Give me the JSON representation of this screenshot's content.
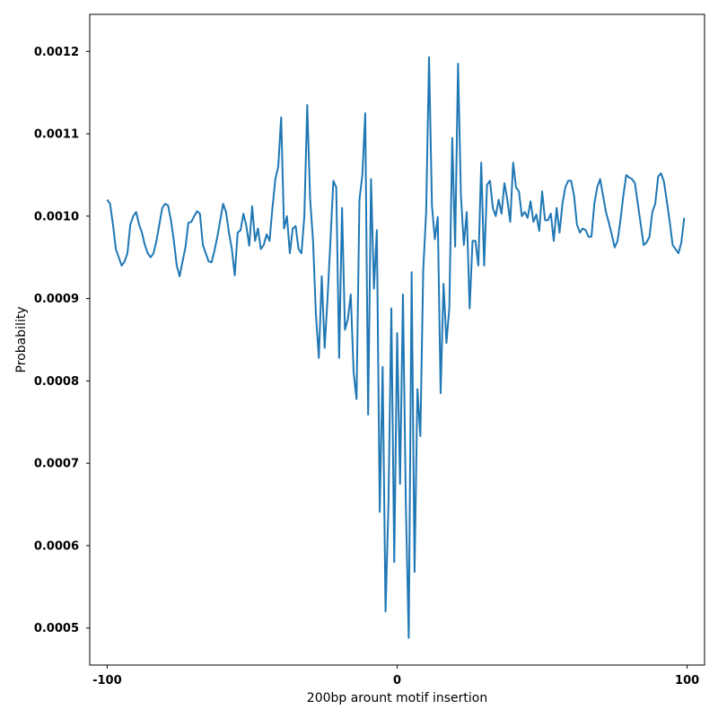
{
  "chart_data": {
    "type": "line",
    "title": "",
    "xlabel": "200bp arount motif insertion",
    "ylabel": "Probability",
    "xlim": [
      -106,
      106
    ],
    "ylim": [
      0.000455,
      0.001245
    ],
    "x_ticks": [
      -100,
      0,
      100
    ],
    "x_tick_labels": [
      "-100",
      "0",
      "100"
    ],
    "y_ticks": [
      0.0005,
      0.0006,
      0.0007,
      0.0008,
      0.0009,
      0.001,
      0.0011,
      0.0012
    ],
    "y_tick_labels": [
      "0.0005",
      "0.0006",
      "0.0007",
      "0.0008",
      "0.0009",
      "0.0010",
      "0.0011",
      "0.0012"
    ],
    "grid": false,
    "line_color": "#1f77b4",
    "series": [
      {
        "x_start": -100,
        "x_step": 1,
        "values": [
          0.00102,
          0.001015,
          0.00099,
          0.00096,
          0.00095,
          0.00094,
          0.000945,
          0.000955,
          0.00099,
          0.001,
          0.001005,
          0.00099,
          0.00098,
          0.000965,
          0.000955,
          0.00095,
          0.000955,
          0.00097,
          0.00099,
          0.00101,
          0.001015,
          0.001013,
          0.000995,
          0.00097,
          0.00094,
          0.000927,
          0.000945,
          0.000962,
          0.000992,
          0.000993,
          0.001,
          0.001006,
          0.001003,
          0.000965,
          0.000955,
          0.000945,
          0.000944,
          0.000958,
          0.000975,
          0.000995,
          0.001015,
          0.001005,
          0.00098,
          0.00096,
          0.000928,
          0.00098,
          0.000983,
          0.001003,
          0.000988,
          0.000964,
          0.001012,
          0.00097,
          0.000985,
          0.00096,
          0.000965,
          0.000978,
          0.00097,
          0.00101,
          0.001045,
          0.00106,
          0.00112,
          0.000985,
          0.001,
          0.000955,
          0.000985,
          0.000988,
          0.00096,
          0.000955,
          0.001,
          0.001135,
          0.00102,
          0.00097,
          0.00088,
          0.000828,
          0.000927,
          0.00084,
          0.0009,
          0.00097,
          0.001043,
          0.001035,
          0.000828,
          0.00101,
          0.000862,
          0.000875,
          0.000905,
          0.00081,
          0.000778,
          0.00102,
          0.00105,
          0.001125,
          0.000759,
          0.001045,
          0.000912,
          0.000983,
          0.000641,
          0.000817,
          0.00052,
          0.00065,
          0.000888,
          0.00058,
          0.000858,
          0.000675,
          0.000905,
          0.00065,
          0.000488,
          0.000932,
          0.000568,
          0.00079,
          0.000733,
          0.000935,
          0.001005,
          0.001193,
          0.001013,
          0.000972,
          0.000999,
          0.000785,
          0.000918,
          0.000846,
          0.000889,
          0.001095,
          0.000963,
          0.001185,
          0.001025,
          0.000965,
          0.001005,
          0.000888,
          0.00097,
          0.00097,
          0.00094,
          0.001065,
          0.00094,
          0.001038,
          0.001043,
          0.00101,
          0.001,
          0.00102,
          0.001003,
          0.00104,
          0.00102,
          0.000993,
          0.001065,
          0.001035,
          0.00103,
          0.001,
          0.001005,
          0.000998,
          0.001018,
          0.000993,
          0.001002,
          0.000982,
          0.00103,
          0.000995,
          0.000995,
          0.001003,
          0.00097,
          0.00101,
          0.00098,
          0.001015,
          0.001035,
          0.001043,
          0.001043,
          0.001025,
          0.00099,
          0.00098,
          0.000985,
          0.000983,
          0.000975,
          0.000975,
          0.001015,
          0.001035,
          0.001045,
          0.001025,
          0.001005,
          0.000992,
          0.000978,
          0.000962,
          0.00097,
          0.000995,
          0.001025,
          0.00105,
          0.001047,
          0.001045,
          0.00104,
          0.001015,
          0.00099,
          0.000965,
          0.000968,
          0.000975,
          0.001005,
          0.001015,
          0.001048,
          0.001052,
          0.001042,
          0.001018,
          0.000993,
          0.000965,
          0.00096,
          0.000955,
          0.000968,
          0.000998
        ]
      }
    ]
  }
}
